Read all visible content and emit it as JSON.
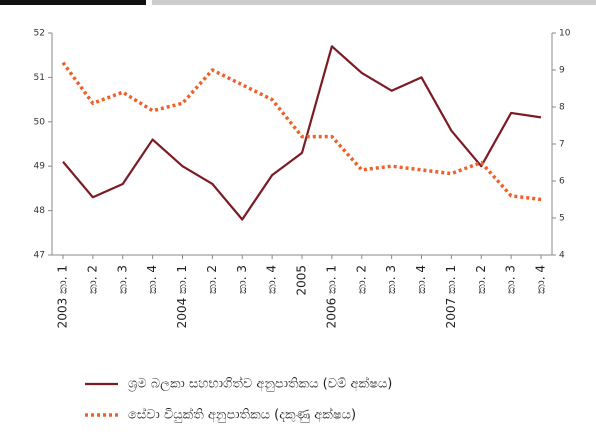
{
  "chart_data": {
    "type": "line",
    "categories": [
      "2003 කා. 1",
      "කා. 2",
      "කා. 3",
      "කා. 4",
      "2004 කා. 1",
      "කා. 2",
      "කා. 3",
      "කා. 4",
      "2005",
      "2006 කා. 1",
      "කා. 2",
      "කා. 3",
      "කා. 4",
      "2007 කා. 1",
      "කා. 2",
      "කා. 3",
      "කා. 4"
    ],
    "series": [
      {
        "name": "ශ්‍රම බලකා සහභාගිත්ව අනුපාතිකය (වම් අක්ෂය)",
        "color": "#7b1c24",
        "style": "solid",
        "values": [
          49.1,
          48.3,
          48.6,
          49.6,
          49.0,
          48.6,
          47.8,
          48.8,
          49.3,
          51.7,
          51.1,
          50.7,
          51.0,
          49.8,
          49.0,
          50.2,
          50.1
        ]
      },
      {
        "name": "සේවා වියුක්ති අනුපාතිකය (දකුණු අක්ෂය)",
        "color": "#f0602a",
        "style": "dotted",
        "axis": "y2",
        "values": [
          9.2,
          8.1,
          8.4,
          7.9,
          8.1,
          9.0,
          8.6,
          8.2,
          7.2,
          7.2,
          6.3,
          6.4,
          6.3,
          6.2,
          6.5,
          5.6,
          5.5
        ]
      }
    ],
    "ylim": [
      47,
      52
    ],
    "yticks": [
      47,
      48,
      49,
      50,
      51,
      52
    ],
    "y2lim": [
      4,
      10
    ],
    "y2ticks": [
      4,
      5,
      6,
      7,
      8,
      9,
      10
    ],
    "grid": false
  }
}
